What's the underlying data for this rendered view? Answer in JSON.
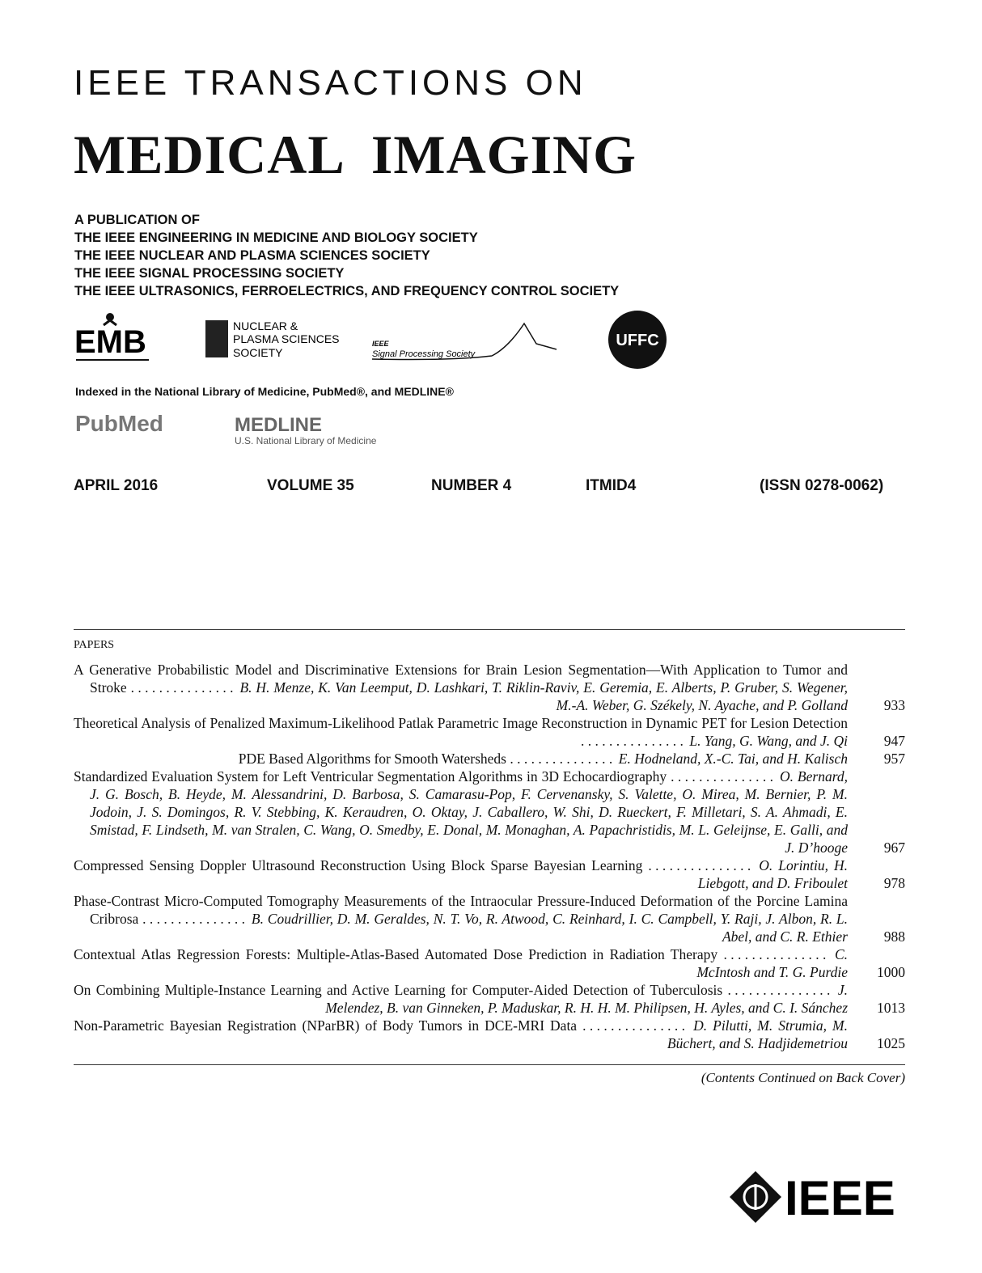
{
  "header": {
    "line1": "IEEE TRANSACTIONS ON",
    "title": "MEDICAL IMAGING"
  },
  "publication": {
    "lines": [
      "A PUBLICATION OF",
      "THE IEEE ENGINEERING IN MEDICINE AND BIOLOGY SOCIETY",
      "THE IEEE NUCLEAR AND PLASMA SCIENCES SOCIETY",
      "THE IEEE SIGNAL PROCESSING SOCIETY",
      "THE IEEE ULTRASONICS, FERROELECTRICS, AND FREQUENCY CONTROL SOCIETY"
    ]
  },
  "logos": {
    "emb": "EMB",
    "nps": [
      "NUCLEAR &",
      "PLASMA SCIENCES",
      "SOCIETY"
    ],
    "sps": [
      "IEEE",
      "Signal Processing Society"
    ],
    "uffc": "UFFC"
  },
  "index": {
    "text": "Indexed in the National Library of Medicine, PubMed®, and MEDLINE®",
    "pubmed": "PubMed",
    "medline": "MEDLINE",
    "medline_sub": "U.S. National Library of Medicine"
  },
  "issue": [
    "APRIL 2016",
    "VOLUME 35",
    "NUMBER 4",
    "ITMID4",
    "(ISSN 0278-0062)"
  ],
  "contents": {
    "section": "PAPERS",
    "papers": [
      {
        "title": "A Generative Probabilistic Model and Discriminative Extensions for Brain Lesion Segmentation—With Application to Tumor and Stroke",
        "authors": "B. H. Menze, K. Van Leemput, D. Lashkari, T. Riklin-Raviv, E. Geremia, E. Alberts, P. Gruber, S. Wegener, M.-A. Weber, G. Székely, N. Ayache, and P. Golland",
        "page": 933
      },
      {
        "title": "Theoretical Analysis of Penalized Maximum-Likelihood Patlak Parametric Image Reconstruction in Dynamic PET for Lesion Detection",
        "authors": "L. Yang, G. Wang, and J. Qi",
        "page": 947
      },
      {
        "title": "PDE Based Algorithms for Smooth Watersheds",
        "authors": "E. Hodneland, X.-C. Tai, and H. Kalisch",
        "page": 957
      },
      {
        "title": "Standardized Evaluation System for Left Ventricular Segmentation Algorithms in 3D Echocardiography",
        "authors": "O. Bernard, J. G. Bosch, B. Heyde, M. Alessandrini, D. Barbosa, S. Camarasu-Pop, F. Cervenansky, S. Valette, O. Mirea, M. Bernier, P. M. Jodoin, J. S. Domingos, R. V. Stebbing, K. Keraudren, O. Oktay, J. Caballero, W. Shi, D. Rueckert, F. Milletari, S. A. Ahmadi, E. Smistad, F. Lindseth, M. van Stralen, C. Wang, O. Smedby, E. Donal, M. Monaghan, A. Papachristidis, M. L. Geleijnse, E. Galli, and J. D’hooge",
        "page": 967
      },
      {
        "title": "Compressed Sensing Doppler Ultrasound Reconstruction Using Block Sparse Bayesian Learning",
        "authors": "O. Lorintiu, H. Liebgott, and D. Friboulet",
        "page": 978
      },
      {
        "title": "Phase-Contrast Micro-Computed Tomography Measurements of the Intraocular Pressure-Induced Deformation of the Porcine Lamina Cribrosa",
        "authors": "B. Coudrillier, D. M. Geraldes, N. T. Vo, R. Atwood, C. Reinhard, I. C. Campbell, Y. Raji, J. Albon, R. L. Abel, and C. R. Ethier",
        "page": 988
      },
      {
        "title": "Contextual Atlas Regression Forests: Multiple-Atlas-Based Automated Dose Prediction in Radiation Therapy",
        "authors": "C. McIntosh and T. G. Purdie",
        "page": 1000
      },
      {
        "title": "On Combining Multiple-Instance Learning and Active Learning for Computer-Aided Detection of Tuberculosis",
        "authors": "J. Melendez, B. van Ginneken, P. Maduskar, R. H. H. M. Philipsen, H. Ayles, and C. I. Sánchez",
        "page": 1013
      },
      {
        "title": "Non-Parametric Bayesian Registration (NParBR) of Body Tumors in DCE-MRI Data",
        "authors": "D. Pilutti, M. Strumia, M. Büchert, and S. Hadjidemetriou",
        "page": 1025
      }
    ]
  },
  "footer": {
    "continued": "(Contents Continued on Back Cover)",
    "logo": "IEEE"
  }
}
